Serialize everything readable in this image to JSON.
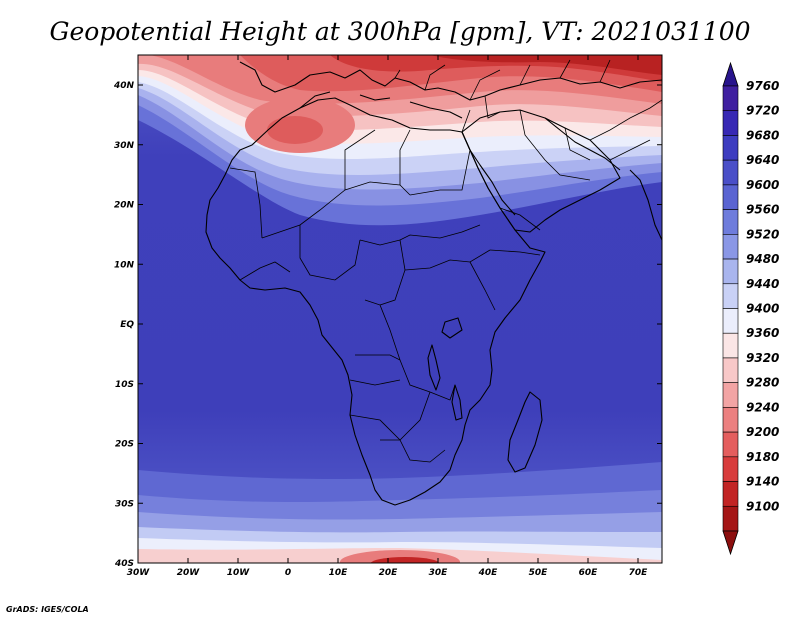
{
  "title": "Geopotential Height at 300hPa [gpm], VT: 2021031100",
  "credit": "GrADS: IGES/COLA",
  "map": {
    "lon_labels": [
      "30W",
      "20W",
      "10W",
      "0",
      "10E",
      "20E",
      "30E",
      "40E",
      "50E",
      "60E",
      "70E"
    ],
    "lat_labels": [
      "40N",
      "30N",
      "20N",
      "10N",
      "EQ",
      "10S",
      "20S",
      "30S",
      "40S"
    ]
  },
  "colorbar": {
    "labels": [
      "9760",
      "9720",
      "9680",
      "9640",
      "9600",
      "9560",
      "9520",
      "9480",
      "9440",
      "9400",
      "9360",
      "9320",
      "9280",
      "9240",
      "9200",
      "9180",
      "9140",
      "9100"
    ],
    "colors": [
      "#3f1fa0",
      "#3728b4",
      "#3d3cc0",
      "#4a4fc8",
      "#5a64d2",
      "#6e7cdc",
      "#8a97e6",
      "#a9b5ee",
      "#c9d1f6",
      "#ebeefc",
      "#fbe6e6",
      "#f8c8c8",
      "#f2a4a4",
      "#ec8080",
      "#e45e5e",
      "#d83c3c",
      "#c22424",
      "#a51616"
    ],
    "top_arrow_color": "#28148c",
    "bottom_arrow_color": "#8c0e0e"
  }
}
